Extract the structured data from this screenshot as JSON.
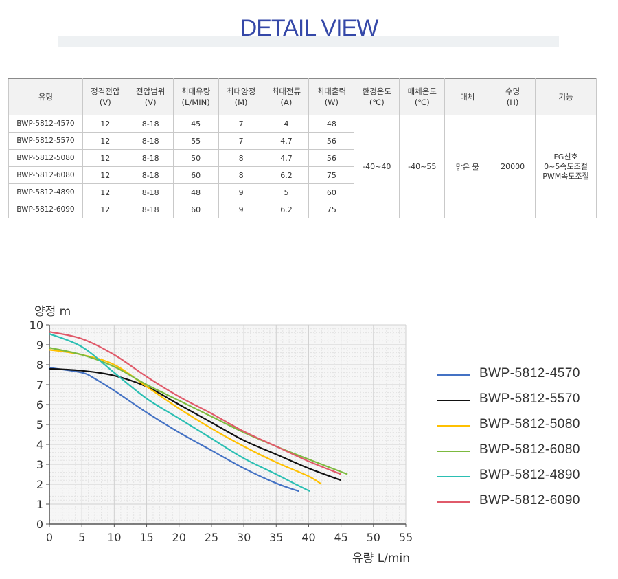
{
  "header": {
    "title": "DETAIL VIEW"
  },
  "table": {
    "columns": [
      {
        "line1": "유형",
        "line2": ""
      },
      {
        "line1": "정격전압",
        "line2": "(V)"
      },
      {
        "line1": "전압범위",
        "line2": "(V)"
      },
      {
        "line1": "최대유량",
        "line2": "(L/MIN)"
      },
      {
        "line1": "최대양정",
        "line2": "(M)"
      },
      {
        "line1": "최대전류",
        "line2": "(A)"
      },
      {
        "line1": "최대출력",
        "line2": "(W)"
      },
      {
        "line1": "환경온도",
        "line2": "(℃)"
      },
      {
        "line1": "매체온도",
        "line2": "(℃)"
      },
      {
        "line1": "매체",
        "line2": ""
      },
      {
        "line1": "수명",
        "line2": "(H)"
      },
      {
        "line1": "기능",
        "line2": ""
      }
    ],
    "rows": [
      {
        "model": "BWP-5812-4570",
        "voltage": "12",
        "range": "8-18",
        "flow": "45",
        "head": "7",
        "current": "4",
        "power": "48"
      },
      {
        "model": "BWP-5812-5570",
        "voltage": "12",
        "range": "8-18",
        "flow": "55",
        "head": "7",
        "current": "4.7",
        "power": "56"
      },
      {
        "model": "BWP-5812-5080",
        "voltage": "12",
        "range": "8-18",
        "flow": "50",
        "head": "8",
        "current": "4.7",
        "power": "56"
      },
      {
        "model": "BWP-5812-6080",
        "voltage": "12",
        "range": "8-18",
        "flow": "60",
        "head": "8",
        "current": "6.2",
        "power": "75"
      },
      {
        "model": "BWP-5812-4890",
        "voltage": "12",
        "range": "8-18",
        "flow": "48",
        "head": "9",
        "current": "5",
        "power": "60"
      },
      {
        "model": "BWP-5812-6090",
        "voltage": "12",
        "range": "8-18",
        "flow": "60",
        "head": "9",
        "current": "6.2",
        "power": "75"
      }
    ],
    "shared": {
      "ambient_temp": "-40~40",
      "media_temp": "-40~55",
      "media": "맑은 물",
      "lifespan": "20000",
      "function_lines": [
        "FG신호",
        "0~5속도조절",
        "PWM속도조절"
      ]
    }
  },
  "chart_data": {
    "type": "line",
    "title": "",
    "ylabel": "양정 m",
    "xlabel": "유량 L/min",
    "xlim": [
      0,
      55
    ],
    "ylim": [
      0,
      10
    ],
    "xticks": [
      0,
      5,
      10,
      15,
      20,
      25,
      30,
      35,
      40,
      45,
      50,
      55
    ],
    "yticks": [
      0,
      1,
      2,
      3,
      4,
      5,
      6,
      7,
      8,
      9,
      10
    ],
    "grid": true,
    "legend": "right",
    "series": [
      {
        "name": "BWP-5812-4570",
        "color": "#4472c4",
        "x": [
          0,
          5,
          7,
          10,
          15,
          20,
          25,
          30,
          35,
          38.5
        ],
        "y": [
          7.85,
          7.6,
          7.3,
          6.7,
          5.6,
          4.6,
          3.7,
          2.8,
          2.05,
          1.65
        ]
      },
      {
        "name": "BWP-5812-5570",
        "color": "#111111",
        "x": [
          0,
          5,
          10,
          15,
          20,
          25,
          30,
          35,
          40,
          45
        ],
        "y": [
          7.8,
          7.7,
          7.45,
          6.9,
          6.0,
          5.1,
          4.2,
          3.5,
          2.8,
          2.2
        ]
      },
      {
        "name": "BWP-5812-5080",
        "color": "#ffc000",
        "x": [
          0,
          5,
          10,
          15,
          20,
          25,
          30,
          35,
          40,
          42
        ],
        "y": [
          8.75,
          8.5,
          8.0,
          6.9,
          5.8,
          4.8,
          3.9,
          3.1,
          2.4,
          2.0
        ]
      },
      {
        "name": "BWP-5812-6080",
        "color": "#7cba3f",
        "x": [
          0,
          5,
          10,
          15,
          20,
          25,
          30,
          35,
          40,
          46
        ],
        "y": [
          8.85,
          8.5,
          7.9,
          7.0,
          6.2,
          5.4,
          4.6,
          3.9,
          3.25,
          2.5
        ]
      },
      {
        "name": "BWP-5812-4890",
        "color": "#2bbfb3",
        "x": [
          0,
          5,
          10,
          15,
          20,
          25,
          30,
          35,
          38,
          40.2
        ],
        "y": [
          9.55,
          8.9,
          7.6,
          6.3,
          5.3,
          4.3,
          3.3,
          2.5,
          2.0,
          1.65
        ]
      },
      {
        "name": "BWP-5812-6090",
        "color": "#e05a6a",
        "x": [
          0,
          5,
          10,
          15,
          20,
          25,
          30,
          35,
          40,
          45
        ],
        "y": [
          9.65,
          9.3,
          8.5,
          7.4,
          6.4,
          5.55,
          4.65,
          3.9,
          3.15,
          2.5
        ]
      }
    ]
  }
}
